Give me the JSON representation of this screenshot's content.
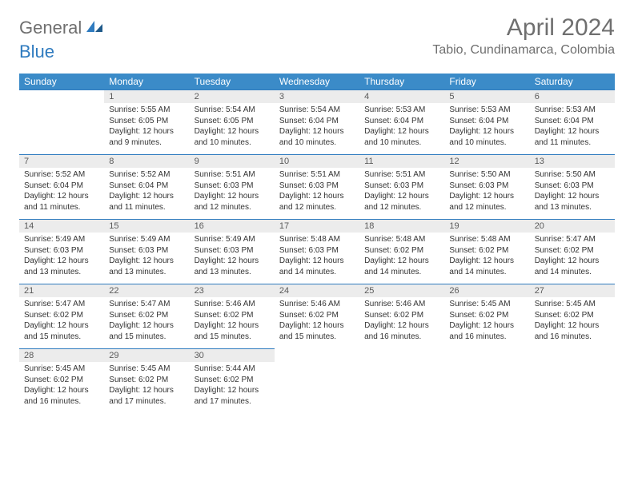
{
  "logo": {
    "part1": "General",
    "part2": "Blue"
  },
  "title": "April 2024",
  "location": "Tabio, Cundinamarca, Colombia",
  "colors": {
    "header_bg": "#3b8bc8",
    "header_text": "#ffffff",
    "day_number_bg": "#ececec",
    "border": "#2f7bbf",
    "logo_gray": "#6f6f6f",
    "logo_blue": "#2f7bbf"
  },
  "weekdays": [
    "Sunday",
    "Monday",
    "Tuesday",
    "Wednesday",
    "Thursday",
    "Friday",
    "Saturday"
  ],
  "weeks": [
    [
      null,
      {
        "n": "1",
        "sunrise": "Sunrise: 5:55 AM",
        "sunset": "Sunset: 6:05 PM",
        "daylight": "Daylight: 12 hours and 9 minutes."
      },
      {
        "n": "2",
        "sunrise": "Sunrise: 5:54 AM",
        "sunset": "Sunset: 6:05 PM",
        "daylight": "Daylight: 12 hours and 10 minutes."
      },
      {
        "n": "3",
        "sunrise": "Sunrise: 5:54 AM",
        "sunset": "Sunset: 6:04 PM",
        "daylight": "Daylight: 12 hours and 10 minutes."
      },
      {
        "n": "4",
        "sunrise": "Sunrise: 5:53 AM",
        "sunset": "Sunset: 6:04 PM",
        "daylight": "Daylight: 12 hours and 10 minutes."
      },
      {
        "n": "5",
        "sunrise": "Sunrise: 5:53 AM",
        "sunset": "Sunset: 6:04 PM",
        "daylight": "Daylight: 12 hours and 10 minutes."
      },
      {
        "n": "6",
        "sunrise": "Sunrise: 5:53 AM",
        "sunset": "Sunset: 6:04 PM",
        "daylight": "Daylight: 12 hours and 11 minutes."
      }
    ],
    [
      {
        "n": "7",
        "sunrise": "Sunrise: 5:52 AM",
        "sunset": "Sunset: 6:04 PM",
        "daylight": "Daylight: 12 hours and 11 minutes."
      },
      {
        "n": "8",
        "sunrise": "Sunrise: 5:52 AM",
        "sunset": "Sunset: 6:04 PM",
        "daylight": "Daylight: 12 hours and 11 minutes."
      },
      {
        "n": "9",
        "sunrise": "Sunrise: 5:51 AM",
        "sunset": "Sunset: 6:03 PM",
        "daylight": "Daylight: 12 hours and 12 minutes."
      },
      {
        "n": "10",
        "sunrise": "Sunrise: 5:51 AM",
        "sunset": "Sunset: 6:03 PM",
        "daylight": "Daylight: 12 hours and 12 minutes."
      },
      {
        "n": "11",
        "sunrise": "Sunrise: 5:51 AM",
        "sunset": "Sunset: 6:03 PM",
        "daylight": "Daylight: 12 hours and 12 minutes."
      },
      {
        "n": "12",
        "sunrise": "Sunrise: 5:50 AM",
        "sunset": "Sunset: 6:03 PM",
        "daylight": "Daylight: 12 hours and 12 minutes."
      },
      {
        "n": "13",
        "sunrise": "Sunrise: 5:50 AM",
        "sunset": "Sunset: 6:03 PM",
        "daylight": "Daylight: 12 hours and 13 minutes."
      }
    ],
    [
      {
        "n": "14",
        "sunrise": "Sunrise: 5:49 AM",
        "sunset": "Sunset: 6:03 PM",
        "daylight": "Daylight: 12 hours and 13 minutes."
      },
      {
        "n": "15",
        "sunrise": "Sunrise: 5:49 AM",
        "sunset": "Sunset: 6:03 PM",
        "daylight": "Daylight: 12 hours and 13 minutes."
      },
      {
        "n": "16",
        "sunrise": "Sunrise: 5:49 AM",
        "sunset": "Sunset: 6:03 PM",
        "daylight": "Daylight: 12 hours and 13 minutes."
      },
      {
        "n": "17",
        "sunrise": "Sunrise: 5:48 AM",
        "sunset": "Sunset: 6:03 PM",
        "daylight": "Daylight: 12 hours and 14 minutes."
      },
      {
        "n": "18",
        "sunrise": "Sunrise: 5:48 AM",
        "sunset": "Sunset: 6:02 PM",
        "daylight": "Daylight: 12 hours and 14 minutes."
      },
      {
        "n": "19",
        "sunrise": "Sunrise: 5:48 AM",
        "sunset": "Sunset: 6:02 PM",
        "daylight": "Daylight: 12 hours and 14 minutes."
      },
      {
        "n": "20",
        "sunrise": "Sunrise: 5:47 AM",
        "sunset": "Sunset: 6:02 PM",
        "daylight": "Daylight: 12 hours and 14 minutes."
      }
    ],
    [
      {
        "n": "21",
        "sunrise": "Sunrise: 5:47 AM",
        "sunset": "Sunset: 6:02 PM",
        "daylight": "Daylight: 12 hours and 15 minutes."
      },
      {
        "n": "22",
        "sunrise": "Sunrise: 5:47 AM",
        "sunset": "Sunset: 6:02 PM",
        "daylight": "Daylight: 12 hours and 15 minutes."
      },
      {
        "n": "23",
        "sunrise": "Sunrise: 5:46 AM",
        "sunset": "Sunset: 6:02 PM",
        "daylight": "Daylight: 12 hours and 15 minutes."
      },
      {
        "n": "24",
        "sunrise": "Sunrise: 5:46 AM",
        "sunset": "Sunset: 6:02 PM",
        "daylight": "Daylight: 12 hours and 15 minutes."
      },
      {
        "n": "25",
        "sunrise": "Sunrise: 5:46 AM",
        "sunset": "Sunset: 6:02 PM",
        "daylight": "Daylight: 12 hours and 16 minutes."
      },
      {
        "n": "26",
        "sunrise": "Sunrise: 5:45 AM",
        "sunset": "Sunset: 6:02 PM",
        "daylight": "Daylight: 12 hours and 16 minutes."
      },
      {
        "n": "27",
        "sunrise": "Sunrise: 5:45 AM",
        "sunset": "Sunset: 6:02 PM",
        "daylight": "Daylight: 12 hours and 16 minutes."
      }
    ],
    [
      {
        "n": "28",
        "sunrise": "Sunrise: 5:45 AM",
        "sunset": "Sunset: 6:02 PM",
        "daylight": "Daylight: 12 hours and 16 minutes."
      },
      {
        "n": "29",
        "sunrise": "Sunrise: 5:45 AM",
        "sunset": "Sunset: 6:02 PM",
        "daylight": "Daylight: 12 hours and 17 minutes."
      },
      {
        "n": "30",
        "sunrise": "Sunrise: 5:44 AM",
        "sunset": "Sunset: 6:02 PM",
        "daylight": "Daylight: 12 hours and 17 minutes."
      },
      null,
      null,
      null,
      null
    ]
  ]
}
